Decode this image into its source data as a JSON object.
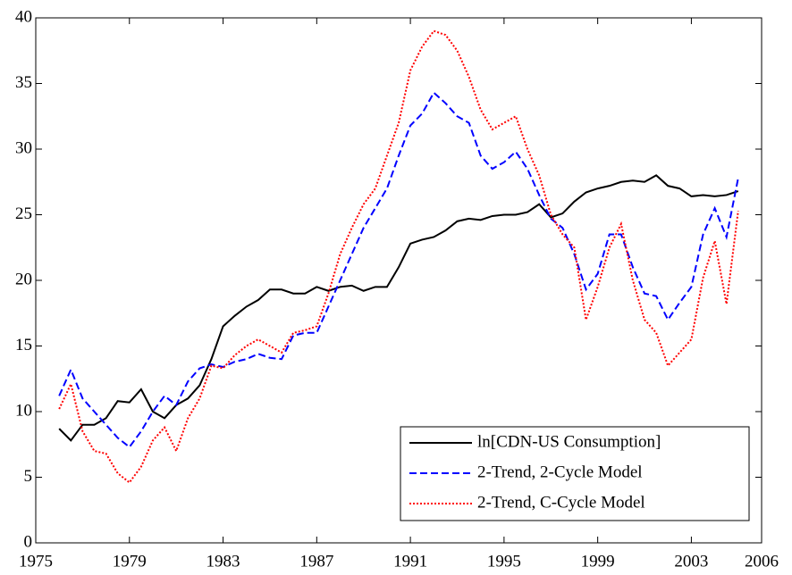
{
  "chart_data": {
    "type": "line",
    "x": [
      1976,
      1976.5,
      1977,
      1977.5,
      1978,
      1978.5,
      1979,
      1979.5,
      1980,
      1980.5,
      1981,
      1981.5,
      1982,
      1982.5,
      1983,
      1983.5,
      1984,
      1984.5,
      1985,
      1985.5,
      1986,
      1986.5,
      1987,
      1987.5,
      1988,
      1988.5,
      1989,
      1989.5,
      1990,
      1990.5,
      1991,
      1991.5,
      1992,
      1992.5,
      1993,
      1993.5,
      1994,
      1994.5,
      1995,
      1995.5,
      1996,
      1996.5,
      1997,
      1997.5,
      1998,
      1998.5,
      1999,
      1999.5,
      2000,
      2000.5,
      2001,
      2001.5,
      2002,
      2002.5,
      2003,
      2003.5,
      2004,
      2004.5,
      2005
    ],
    "series": [
      {
        "name": "ln[CDN-US Consumption]",
        "color": "#000000",
        "style": "solid",
        "values": [
          8.7,
          7.8,
          9.0,
          9.0,
          9.5,
          10.8,
          10.7,
          11.7,
          10.0,
          9.5,
          10.5,
          11.0,
          12.0,
          14.0,
          16.5,
          17.3,
          18.0,
          18.5,
          19.3,
          19.3,
          19.0,
          19.0,
          19.5,
          19.2,
          19.5,
          19.6,
          19.2,
          19.5,
          19.5,
          21.0,
          22.8,
          23.1,
          23.3,
          23.8,
          24.5,
          24.7,
          24.6,
          24.9,
          25.0,
          25.0,
          25.2,
          25.8,
          24.8,
          25.1,
          26.0,
          26.7,
          27.0,
          27.2,
          27.5,
          27.6,
          27.5,
          28.0,
          27.2,
          27.0,
          26.4,
          26.5,
          26.4,
          26.5,
          26.8
        ]
      },
      {
        "name": "2-Trend, 2-Cycle Model",
        "color": "#0000ff",
        "style": "dashed",
        "values": [
          11.2,
          13.2,
          11.0,
          10.0,
          9.0,
          8.0,
          7.3,
          8.5,
          10.0,
          11.2,
          10.5,
          12.3,
          13.3,
          13.6,
          13.4,
          13.8,
          14.0,
          14.4,
          14.1,
          14.0,
          15.8,
          16.0,
          16.0,
          18.0,
          20.0,
          22.0,
          24.0,
          25.5,
          27.0,
          29.5,
          31.8,
          32.7,
          34.3,
          33.5,
          32.5,
          32.0,
          29.5,
          28.5,
          29.0,
          29.8,
          28.5,
          26.5,
          24.7,
          24.0,
          22.0,
          19.3,
          20.5,
          23.5,
          23.5,
          21.0,
          19.0,
          18.8,
          17.0,
          18.3,
          19.5,
          23.5,
          25.5,
          23.3,
          27.8
        ]
      },
      {
        "name": "2-Trend, C-Cycle Model",
        "color": "#ff0000",
        "style": "dotted",
        "values": [
          10.2,
          12.1,
          8.5,
          7.0,
          6.8,
          5.3,
          4.6,
          5.8,
          7.8,
          8.8,
          7.0,
          9.5,
          11.0,
          13.5,
          13.3,
          14.3,
          15.0,
          15.5,
          15.0,
          14.5,
          16.0,
          16.2,
          16.5,
          19.0,
          22.0,
          24.0,
          25.8,
          27.0,
          29.5,
          32.0,
          36.0,
          37.8,
          39.0,
          38.7,
          37.5,
          35.5,
          33.0,
          31.5,
          32.0,
          32.5,
          30.0,
          28.0,
          25.0,
          23.5,
          22.5,
          17.0,
          19.5,
          22.5,
          24.3,
          20.0,
          17.0,
          16.0,
          13.5,
          14.5,
          15.5,
          20.2,
          23.0,
          18.2,
          25.3
        ]
      }
    ],
    "xlim": [
      1975,
      2006
    ],
    "xticks": [
      1975,
      1979,
      1983,
      1987,
      1991,
      1995,
      1999,
      2003,
      2006
    ],
    "ylim": [
      0,
      40
    ],
    "yticks": [
      0,
      5,
      10,
      15,
      20,
      25,
      30,
      35,
      40
    ],
    "legend": "lower right"
  }
}
